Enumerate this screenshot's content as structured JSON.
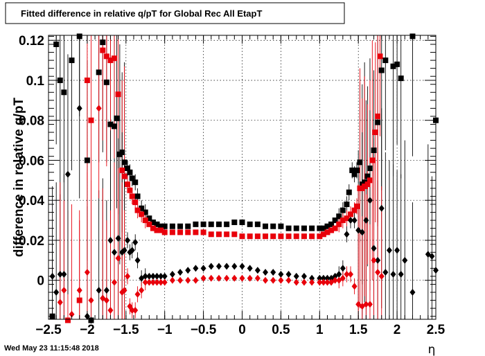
{
  "chart_data": {
    "type": "scatter",
    "title": "Fitted difference in relative q/pT  for Global Rec All EtapT",
    "xlabel": "η",
    "ylabel": "difference in relative q/pT",
    "xlim": [
      -2.5,
      2.5
    ],
    "ylim": [
      -0.0195,
      0.1225
    ],
    "xticks": [
      -2.5,
      -2,
      -1.5,
      -1,
      -0.5,
      0,
      0.5,
      1,
      1.5,
      2,
      2.5
    ],
    "xtick_labels": [
      "−2.5",
      "−2",
      "−1.5",
      "−1",
      "−0.5",
      "0",
      "0.5",
      "1",
      "1.5",
      "2",
      "2.5"
    ],
    "yticks": [
      0,
      0.02,
      0.04,
      0.06,
      0.08,
      0.1,
      0.12
    ],
    "ytick_labels": [
      "0",
      "0.02",
      "0.04",
      "0.06",
      "0.08",
      "0.1",
      "0.12"
    ],
    "grid": true,
    "series": [
      {
        "marker": "square",
        "color": "#000000",
        "x": [
          -2.45,
          -2.4,
          -2.35,
          -2.3,
          -2.2,
          -2.1,
          -2.0,
          -1.95,
          -1.85,
          -1.8,
          -1.75,
          -1.7,
          -1.65,
          -1.62,
          -1.58,
          -1.55,
          -1.52,
          -1.48,
          -1.45,
          -1.42,
          -1.38,
          -1.35,
          -1.3,
          -1.25,
          -1.2,
          -1.15,
          -1.1,
          -1.05,
          -1.0,
          -0.9,
          -0.8,
          -0.7,
          -0.6,
          -0.5,
          -0.4,
          -0.3,
          -0.2,
          -0.1,
          0.0,
          0.1,
          0.2,
          0.3,
          0.4,
          0.5,
          0.6,
          0.7,
          0.8,
          0.9,
          1.0,
          1.05,
          1.1,
          1.15,
          1.2,
          1.25,
          1.3,
          1.35,
          1.38,
          1.42,
          1.45,
          1.48,
          1.52,
          1.55,
          1.58,
          1.62,
          1.65,
          1.7,
          1.75,
          1.8,
          1.85,
          1.95,
          2.0,
          2.05,
          2.2,
          2.5
        ],
        "y": [
          -0.018,
          0.118,
          0.1,
          0.094,
          0.11,
          0.122,
          0.06,
          -0.02,
          0.104,
          0.119,
          0.099,
          0.078,
          0.077,
          0.081,
          0.063,
          0.064,
          0.059,
          0.056,
          0.054,
          0.051,
          0.049,
          0.042,
          0.036,
          0.034,
          0.031,
          0.029,
          0.028,
          0.027,
          0.027,
          0.027,
          0.027,
          0.027,
          0.028,
          0.028,
          0.028,
          0.028,
          0.028,
          0.029,
          0.029,
          0.028,
          0.028,
          0.027,
          0.027,
          0.027,
          0.026,
          0.026,
          0.026,
          0.026,
          0.026,
          0.026,
          0.027,
          0.028,
          0.03,
          0.032,
          0.035,
          0.038,
          0.044,
          0.055,
          0.053,
          0.055,
          0.059,
          0.048,
          0.049,
          0.052,
          0.056,
          0.065,
          0.079,
          0.105,
          0.11,
          0.107,
          0.108,
          0.101,
          0.122,
          0.08
        ]
      },
      {
        "marker": "square",
        "color": "#e8000b",
        "x": [
          -2.25,
          -2.1,
          -2.0,
          -1.95,
          -1.8,
          -1.75,
          -1.7,
          -1.65,
          -1.6,
          -1.55,
          -1.52,
          -1.48,
          -1.45,
          -1.42,
          -1.38,
          -1.35,
          -1.3,
          -1.25,
          -1.2,
          -1.15,
          -1.1,
          -1.05,
          -1.0,
          -0.9,
          -0.8,
          -0.7,
          -0.6,
          -0.5,
          -0.4,
          -0.3,
          -0.2,
          -0.1,
          0.0,
          0.1,
          0.2,
          0.3,
          0.4,
          0.5,
          0.6,
          0.7,
          0.8,
          0.9,
          1.0,
          1.05,
          1.1,
          1.15,
          1.2,
          1.25,
          1.3,
          1.35,
          1.4,
          1.45,
          1.48,
          1.52,
          1.55,
          1.58,
          1.62,
          1.65,
          1.68,
          1.72,
          1.75,
          1.78
        ],
        "y": [
          -0.02,
          -0.01,
          0.1,
          0.08,
          0.115,
          0.112,
          0.11,
          0.111,
          0.093,
          0.055,
          0.052,
          0.048,
          0.045,
          0.042,
          0.039,
          0.035,
          0.033,
          0.03,
          0.028,
          0.026,
          0.025,
          0.025,
          0.024,
          0.024,
          0.024,
          0.024,
          0.024,
          0.024,
          0.023,
          0.023,
          0.023,
          0.023,
          0.022,
          0.022,
          0.022,
          0.022,
          0.022,
          0.022,
          0.022,
          0.022,
          0.022,
          0.022,
          0.022,
          0.023,
          0.024,
          0.025,
          0.026,
          0.028,
          0.03,
          0.031,
          0.033,
          0.035,
          0.037,
          0.046,
          0.046,
          0.047,
          0.048,
          0.05,
          0.06,
          0.074,
          0.082,
          0.112
        ]
      },
      {
        "marker": "diamond",
        "color": "#000000",
        "x": [
          -2.45,
          -2.4,
          -2.35,
          -2.3,
          -2.25,
          -2.1,
          -2.0,
          -1.95,
          -1.85,
          -1.8,
          -1.75,
          -1.7,
          -1.65,
          -1.6,
          -1.55,
          -1.52,
          -1.48,
          -1.45,
          -1.42,
          -1.38,
          -1.35,
          -1.3,
          -1.25,
          -1.2,
          -1.15,
          -1.1,
          -1.05,
          -1.0,
          -0.9,
          -0.8,
          -0.7,
          -0.6,
          -0.5,
          -0.4,
          -0.3,
          -0.2,
          -0.1,
          0.0,
          0.1,
          0.2,
          0.3,
          0.4,
          0.5,
          0.6,
          0.7,
          0.8,
          0.9,
          1.0,
          1.05,
          1.1,
          1.15,
          1.2,
          1.25,
          1.3,
          1.35,
          1.4,
          1.45,
          1.5,
          1.55,
          1.6,
          1.65,
          1.7,
          1.75,
          1.8,
          1.85,
          1.9,
          1.95,
          2.0,
          2.05,
          2.1,
          2.2,
          2.4,
          2.45,
          2.5
        ],
        "y": [
          0.002,
          -0.006,
          0.003,
          0.003,
          0.053,
          0.086,
          -0.018,
          -0.02,
          -0.005,
          -0.009,
          -0.005,
          0.02,
          0.014,
          0.021,
          0.014,
          0.015,
          0.02,
          0.014,
          0.015,
          0.019,
          0.01,
          0.001,
          0.002,
          0.002,
          0.002,
          0.002,
          0.002,
          0.002,
          0.003,
          0.004,
          0.005,
          0.006,
          0.006,
          0.007,
          0.007,
          0.007,
          0.007,
          0.007,
          0.006,
          0.005,
          0.004,
          0.004,
          0.003,
          0.003,
          0.002,
          0.002,
          0.001,
          0.001,
          0.001,
          0.001,
          0.001,
          0.002,
          0.003,
          0.006,
          0.023,
          0.03,
          0.03,
          0.025,
          0.024,
          0.03,
          0.04,
          0.016,
          0.01,
          0.036,
          0.004,
          0.015,
          0.003,
          0.015,
          0.003,
          0.01,
          -0.006,
          0.013,
          0.012,
          0.005
        ]
      },
      {
        "marker": "diamond",
        "color": "#e8000b",
        "x": [
          -2.35,
          -2.3,
          -2.2,
          -2.1,
          -2.0,
          -1.95,
          -1.85,
          -1.8,
          -1.75,
          -1.7,
          -1.65,
          -1.6,
          -1.55,
          -1.52,
          -1.48,
          -1.45,
          -1.42,
          -1.38,
          -1.35,
          -1.3,
          -1.25,
          -1.2,
          -1.15,
          -1.1,
          -1.05,
          -1.0,
          -0.9,
          -0.8,
          -0.7,
          -0.6,
          -0.5,
          -0.4,
          -0.3,
          -0.2,
          -0.1,
          0.0,
          0.1,
          0.2,
          0.3,
          0.4,
          0.5,
          0.6,
          0.7,
          0.8,
          0.9,
          1.0,
          1.05,
          1.1,
          1.15,
          1.2,
          1.25,
          1.3,
          1.35,
          1.4,
          1.45,
          1.5,
          1.55,
          1.6,
          1.65,
          1.7,
          1.75,
          1.8
        ],
        "y": [
          -0.011,
          -0.005,
          -0.017,
          -0.005,
          0.004,
          -0.01,
          0.086,
          -0.009,
          -0.01,
          -0.015,
          -0.001,
          0.011,
          -0.006,
          -0.005,
          0.002,
          -0.013,
          -0.015,
          -0.015,
          -0.007,
          -0.005,
          -0.001,
          -0.001,
          -0.001,
          -0.001,
          -0.001,
          -0.001,
          0.0,
          0.0,
          0.0,
          0.0,
          0.001,
          0.001,
          0.001,
          0.001,
          0.001,
          0.001,
          0.001,
          0.001,
          0.0,
          0.0,
          0.0,
          0.0,
          -0.001,
          -0.001,
          -0.001,
          -0.001,
          -0.001,
          -0.001,
          -0.001,
          0.0,
          0.0,
          0.001,
          0.003,
          0.003,
          -0.003,
          -0.012,
          -0.013,
          -0.012,
          -0.012,
          0.01,
          0.004,
          0.002
        ]
      }
    ]
  },
  "footer": {
    "timestamp": "Wed May 23 11:15:48 2018"
  }
}
